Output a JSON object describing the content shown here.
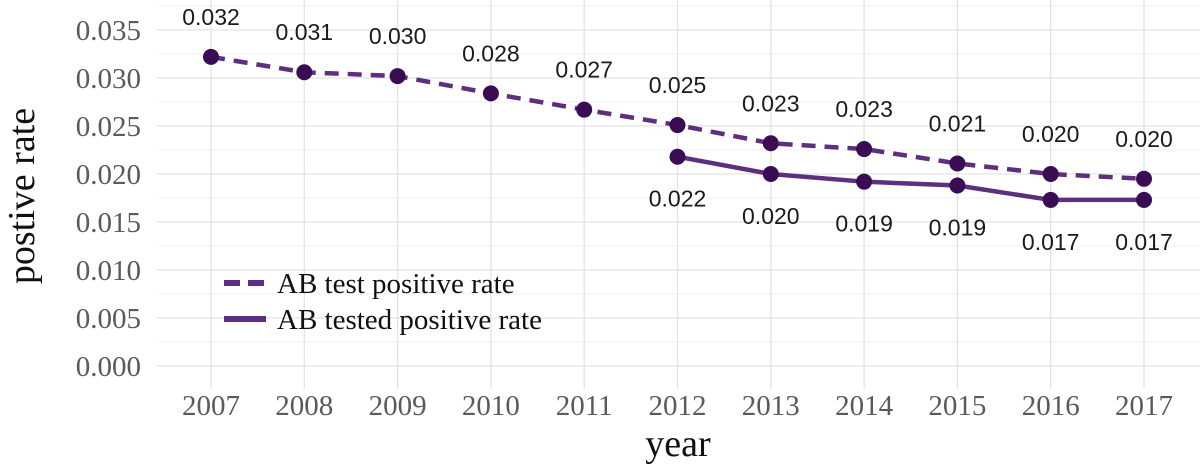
{
  "chart_data": {
    "type": "line",
    "title": "",
    "xlabel": "year",
    "ylabel": "postive rate",
    "x_tick_labels": [
      "2007",
      "2008",
      "2009",
      "2010",
      "2011",
      "2012",
      "2013",
      "2014",
      "2015",
      "2016",
      "2017"
    ],
    "y_tick_labels": [
      "0.035",
      "0.030",
      "0.025",
      "0.020",
      "0.015",
      "0.010",
      "0.005",
      "0.000"
    ],
    "ylim": [
      0,
      0.0375
    ],
    "grid": "horizontal major + minor, vertical major at years; light gray on white",
    "legend_position": "inside-bottom-left",
    "series": [
      {
        "name": "AB test positive rate",
        "line_style": "dashed",
        "label_side": "above",
        "x": [
          2007,
          2008,
          2009,
          2010,
          2011,
          2012,
          2013,
          2014,
          2015,
          2016,
          2017
        ],
        "values": [
          0.0322,
          0.0306,
          0.0302,
          0.0284,
          0.0267,
          0.0251,
          0.0232,
          0.0226,
          0.0211,
          0.02,
          0.0195
        ],
        "point_labels": [
          "0.032",
          "0.031",
          "0.030",
          "0.028",
          "0.027",
          "0.025",
          "0.023",
          "0.023",
          "0.021",
          "0.020",
          "0.020"
        ]
      },
      {
        "name": "AB tested positive rate",
        "line_style": "solid",
        "label_side": "below",
        "x": [
          2012,
          2013,
          2014,
          2015,
          2016,
          2017
        ],
        "values": [
          0.0218,
          0.02,
          0.0192,
          0.0188,
          0.0173,
          0.0173
        ],
        "point_labels": [
          "0.022",
          "0.020",
          "0.019",
          "0.019",
          "0.017",
          "0.017"
        ]
      }
    ],
    "colors": {
      "line": "#5e2f7d",
      "point": "#3a0c53",
      "grid_major": "#e3e3e3",
      "grid_minor": "#f2f2f2",
      "tick_text": "#5a5a5a",
      "axis_title_text": "#111111",
      "data_label_text": "#1a1a1a",
      "background": "#ffffff"
    }
  }
}
